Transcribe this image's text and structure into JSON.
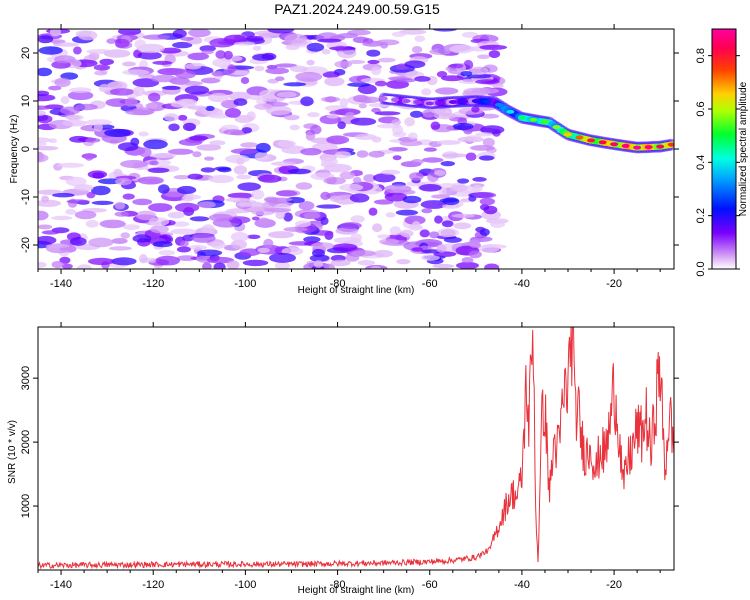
{
  "title": "PAZ1.2024.249.00.59.G15",
  "chart_data": [
    {
      "type": "heatmap",
      "xlabel": "Height of straight line (km)",
      "ylabel": "Frequency (Hz)",
      "xlim": [
        -145,
        -7
      ],
      "ylim": [
        -25,
        25
      ],
      "x_ticks": [
        -140,
        -120,
        -100,
        -80,
        -60,
        -40,
        -20
      ],
      "y_ticks": [
        -20,
        -10,
        0,
        10,
        20
      ],
      "ridge": {
        "x": [
          -70,
          -65,
          -60,
          -55,
          -50,
          -46,
          -43,
          -40,
          -37,
          -34,
          -30,
          -25,
          -20,
          -15,
          -10,
          -7
        ],
        "y": [
          10.5,
          10,
          9.5,
          9.8,
          10,
          9.8,
          8,
          6.5,
          6,
          5.5,
          3,
          1.8,
          1,
          0.3,
          0.5,
          1
        ],
        "amplitude": [
          0.08,
          0.1,
          0.12,
          0.15,
          0.2,
          0.3,
          0.4,
          0.5,
          0.6,
          0.55,
          0.7,
          0.85,
          0.9,
          0.95,
          0.9,
          0.8
        ]
      },
      "colorbar": {
        "label": "Normalized spectral amplitude",
        "range": [
          0,
          0.9
        ],
        "ticks": [
          "0.0",
          "0.2",
          "0.4",
          "0.6",
          "0.8"
        ]
      }
    },
    {
      "type": "line",
      "xlabel": "Height of straight line (km)",
      "ylabel": "SNR (10 * v/v)",
      "xlim": [
        -145,
        -7
      ],
      "ylim": [
        0,
        3800
      ],
      "x_ticks": [
        -140,
        -120,
        -100,
        -80,
        -60,
        -40,
        -20
      ],
      "y_ticks": [
        1000,
        2000,
        3000
      ],
      "series": [
        {
          "color": "#e8323c",
          "x": [
            -145,
            -130,
            -110,
            -90,
            -70,
            -60,
            -55,
            -50,
            -47,
            -45,
            -43,
            -42,
            -41,
            -40,
            -39,
            -38.5,
            -38,
            -37.5,
            -37,
            -36.5,
            -36,
            -35.5,
            -35,
            -34,
            -33,
            -32,
            -31,
            -30,
            -29.5,
            -29,
            -28.5,
            -28,
            -27,
            -26,
            -25,
            -24,
            -23,
            -22,
            -21,
            -20,
            -19,
            -18,
            -17,
            -16,
            -15,
            -14,
            -13,
            -12,
            -11,
            -10,
            -9,
            -8,
            -7
          ],
          "y": [
            70,
            80,
            90,
            90,
            110,
            130,
            150,
            200,
            320,
            700,
            1100,
            1200,
            1150,
            1450,
            3000,
            2200,
            3200,
            3700,
            900,
            150,
            1400,
            2700,
            2500,
            1200,
            2000,
            1900,
            2700,
            2900,
            3400,
            3800,
            2400,
            2600,
            2000,
            1800,
            2000,
            1500,
            1900,
            1800,
            2200,
            2900,
            2200,
            1300,
            1700,
            1900,
            2200,
            2100,
            2400,
            1800,
            2600,
            3200,
            1500,
            2500,
            1800
          ]
        }
      ]
    }
  ]
}
